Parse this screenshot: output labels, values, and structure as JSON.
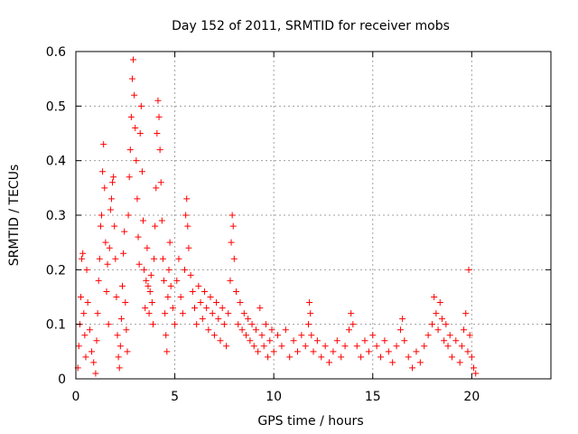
{
  "chart_data": {
    "type": "scatter",
    "title": "Day 152 of 2011, SRMTID for receiver mobs",
    "xlabel": "GPS time / hours",
    "ylabel": "SRMTID / TECUs",
    "xlim": [
      0,
      24
    ],
    "ylim": [
      0,
      0.6
    ],
    "xticks": [
      0,
      5,
      10,
      15,
      20
    ],
    "yticks": [
      0,
      0.1,
      0.2,
      0.3,
      0.4,
      0.5,
      0.6
    ],
    "xtick_labels": [
      "0",
      "5",
      "10",
      "15",
      "20"
    ],
    "ytick_labels": [
      "0",
      "0.1",
      "0.2",
      "0.3",
      "0.4",
      "0.5",
      "0.6"
    ],
    "grid": true,
    "marker": "+",
    "color": "#ff0000",
    "series": [
      {
        "name": "mobs",
        "points": [
          [
            0.1,
            0.02
          ],
          [
            0.15,
            0.06
          ],
          [
            0.2,
            0.1
          ],
          [
            0.25,
            0.15
          ],
          [
            0.3,
            0.22
          ],
          [
            0.35,
            0.23
          ],
          [
            0.4,
            0.12
          ],
          [
            0.45,
            0.08
          ],
          [
            0.5,
            0.04
          ],
          [
            0.55,
            0.2
          ],
          [
            0.6,
            0.14
          ],
          [
            0.7,
            0.09
          ],
          [
            0.8,
            0.05
          ],
          [
            0.9,
            0.03
          ],
          [
            1.0,
            0.01
          ],
          [
            1.05,
            0.07
          ],
          [
            1.1,
            0.12
          ],
          [
            1.15,
            0.18
          ],
          [
            1.2,
            0.22
          ],
          [
            1.25,
            0.28
          ],
          [
            1.3,
            0.3
          ],
          [
            1.35,
            0.38
          ],
          [
            1.4,
            0.43
          ],
          [
            1.45,
            0.35
          ],
          [
            1.5,
            0.25
          ],
          [
            1.55,
            0.16
          ],
          [
            1.6,
            0.21
          ],
          [
            1.65,
            0.1
          ],
          [
            1.7,
            0.24
          ],
          [
            1.75,
            0.31
          ],
          [
            1.8,
            0.33
          ],
          [
            1.85,
            0.36
          ],
          [
            1.9,
            0.37
          ],
          [
            1.95,
            0.28
          ],
          [
            2.0,
            0.22
          ],
          [
            2.05,
            0.15
          ],
          [
            2.1,
            0.08
          ],
          [
            2.15,
            0.04
          ],
          [
            2.2,
            0.02
          ],
          [
            2.25,
            0.06
          ],
          [
            2.3,
            0.11
          ],
          [
            2.35,
            0.17
          ],
          [
            2.4,
            0.23
          ],
          [
            2.45,
            0.27
          ],
          [
            2.5,
            0.14
          ],
          [
            2.55,
            0.09
          ],
          [
            2.6,
            0.05
          ],
          [
            2.65,
            0.3
          ],
          [
            2.7,
            0.37
          ],
          [
            2.75,
            0.42
          ],
          [
            2.8,
            0.48
          ],
          [
            2.85,
            0.55
          ],
          [
            2.9,
            0.585
          ],
          [
            2.95,
            0.52
          ],
          [
            3.0,
            0.46
          ],
          [
            3.05,
            0.4
          ],
          [
            3.1,
            0.33
          ],
          [
            3.15,
            0.26
          ],
          [
            3.2,
            0.21
          ],
          [
            3.25,
            0.45
          ],
          [
            3.3,
            0.5
          ],
          [
            3.35,
            0.38
          ],
          [
            3.4,
            0.29
          ],
          [
            3.45,
            0.2
          ],
          [
            3.5,
            0.13
          ],
          [
            3.55,
            0.18
          ],
          [
            3.6,
            0.24
          ],
          [
            3.65,
            0.17
          ],
          [
            3.7,
            0.12
          ],
          [
            3.75,
            0.16
          ],
          [
            3.8,
            0.19
          ],
          [
            3.85,
            0.14
          ],
          [
            3.9,
            0.1
          ],
          [
            3.95,
            0.22
          ],
          [
            4.0,
            0.28
          ],
          [
            4.05,
            0.35
          ],
          [
            4.1,
            0.45
          ],
          [
            4.15,
            0.51
          ],
          [
            4.2,
            0.48
          ],
          [
            4.25,
            0.42
          ],
          [
            4.3,
            0.36
          ],
          [
            4.35,
            0.29
          ],
          [
            4.4,
            0.22
          ],
          [
            4.45,
            0.18
          ],
          [
            4.5,
            0.12
          ],
          [
            4.55,
            0.08
          ],
          [
            4.6,
            0.05
          ],
          [
            4.65,
            0.15
          ],
          [
            4.7,
            0.2
          ],
          [
            4.75,
            0.25
          ],
          [
            4.8,
            0.17
          ],
          [
            4.9,
            0.13
          ],
          [
            5.0,
            0.1
          ],
          [
            5.1,
            0.18
          ],
          [
            5.2,
            0.22
          ],
          [
            5.3,
            0.15
          ],
          [
            5.4,
            0.12
          ],
          [
            5.5,
            0.2
          ],
          [
            5.55,
            0.3
          ],
          [
            5.6,
            0.33
          ],
          [
            5.65,
            0.28
          ],
          [
            5.7,
            0.24
          ],
          [
            5.8,
            0.19
          ],
          [
            5.9,
            0.16
          ],
          [
            6.0,
            0.13
          ],
          [
            6.1,
            0.1
          ],
          [
            6.2,
            0.17
          ],
          [
            6.3,
            0.14
          ],
          [
            6.4,
            0.11
          ],
          [
            6.5,
            0.16
          ],
          [
            6.6,
            0.13
          ],
          [
            6.7,
            0.09
          ],
          [
            6.8,
            0.15
          ],
          [
            6.9,
            0.12
          ],
          [
            7.0,
            0.08
          ],
          [
            7.1,
            0.14
          ],
          [
            7.2,
            0.11
          ],
          [
            7.3,
            0.07
          ],
          [
            7.4,
            0.13
          ],
          [
            7.5,
            0.1
          ],
          [
            7.6,
            0.06
          ],
          [
            7.7,
            0.12
          ],
          [
            7.8,
            0.18
          ],
          [
            7.85,
            0.25
          ],
          [
            7.9,
            0.3
          ],
          [
            7.95,
            0.28
          ],
          [
            8.0,
            0.22
          ],
          [
            8.1,
            0.16
          ],
          [
            8.2,
            0.1
          ],
          [
            8.3,
            0.14
          ],
          [
            8.4,
            0.09
          ],
          [
            8.5,
            0.12
          ],
          [
            8.6,
            0.08
          ],
          [
            8.7,
            0.11
          ],
          [
            8.8,
            0.07
          ],
          [
            8.9,
            0.1
          ],
          [
            9.0,
            0.06
          ],
          [
            9.1,
            0.09
          ],
          [
            9.2,
            0.05
          ],
          [
            9.3,
            0.13
          ],
          [
            9.4,
            0.08
          ],
          [
            9.5,
            0.06
          ],
          [
            9.6,
            0.1
          ],
          [
            9.7,
            0.04
          ],
          [
            9.8,
            0.07
          ],
          [
            9.9,
            0.09
          ],
          [
            10.0,
            0.05
          ],
          [
            10.2,
            0.08
          ],
          [
            10.4,
            0.06
          ],
          [
            10.6,
            0.09
          ],
          [
            10.8,
            0.04
          ],
          [
            11.0,
            0.07
          ],
          [
            11.2,
            0.05
          ],
          [
            11.4,
            0.08
          ],
          [
            11.6,
            0.06
          ],
          [
            11.75,
            0.1
          ],
          [
            11.8,
            0.14
          ],
          [
            11.85,
            0.12
          ],
          [
            11.9,
            0.08
          ],
          [
            12.0,
            0.05
          ],
          [
            12.2,
            0.07
          ],
          [
            12.4,
            0.04
          ],
          [
            12.6,
            0.06
          ],
          [
            12.8,
            0.03
          ],
          [
            13.0,
            0.05
          ],
          [
            13.2,
            0.07
          ],
          [
            13.4,
            0.04
          ],
          [
            13.6,
            0.06
          ],
          [
            13.8,
            0.09
          ],
          [
            13.9,
            0.12
          ],
          [
            14.0,
            0.1
          ],
          [
            14.2,
            0.06
          ],
          [
            14.4,
            0.04
          ],
          [
            14.6,
            0.07
          ],
          [
            14.8,
            0.05
          ],
          [
            15.0,
            0.08
          ],
          [
            15.2,
            0.06
          ],
          [
            15.4,
            0.04
          ],
          [
            15.6,
            0.07
          ],
          [
            15.8,
            0.05
          ],
          [
            16.0,
            0.03
          ],
          [
            16.2,
            0.06
          ],
          [
            16.4,
            0.09
          ],
          [
            16.5,
            0.11
          ],
          [
            16.6,
            0.07
          ],
          [
            16.8,
            0.04
          ],
          [
            17.0,
            0.02
          ],
          [
            17.2,
            0.05
          ],
          [
            17.4,
            0.03
          ],
          [
            17.6,
            0.06
          ],
          [
            17.8,
            0.08
          ],
          [
            18.0,
            0.1
          ],
          [
            18.1,
            0.15
          ],
          [
            18.2,
            0.12
          ],
          [
            18.3,
            0.09
          ],
          [
            18.4,
            0.14
          ],
          [
            18.5,
            0.11
          ],
          [
            18.6,
            0.07
          ],
          [
            18.7,
            0.1
          ],
          [
            18.8,
            0.06
          ],
          [
            18.9,
            0.08
          ],
          [
            19.0,
            0.04
          ],
          [
            19.2,
            0.07
          ],
          [
            19.4,
            0.03
          ],
          [
            19.5,
            0.06
          ],
          [
            19.6,
            0.09
          ],
          [
            19.7,
            0.12
          ],
          [
            19.8,
            0.05
          ],
          [
            19.85,
            0.2
          ],
          [
            19.9,
            0.08
          ],
          [
            20.0,
            0.04
          ],
          [
            20.1,
            0.02
          ],
          [
            20.2,
            0.01
          ]
        ]
      }
    ]
  }
}
